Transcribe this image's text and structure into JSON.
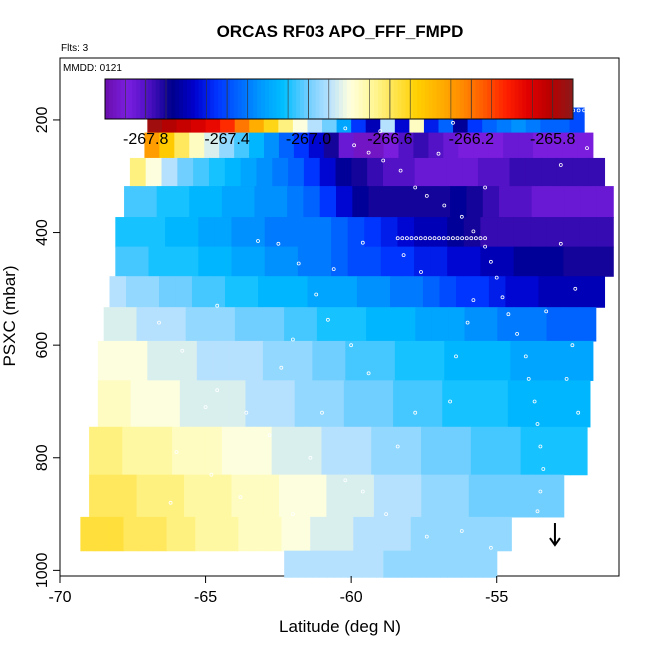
{
  "chart_data": {
    "type": "heatmap",
    "title": "ORCAS RF03 APO_FFF_FMPD",
    "flights_note": "Flts: 3",
    "date_note": "MMDD: 0121",
    "xlabel": "Latitude (deg N)",
    "ylabel": "PSXC (mbar)",
    "xlim": [
      -70,
      -50.8
    ],
    "ylim": [
      1010,
      90
    ],
    "x_ticks": [
      -70,
      -65,
      -60,
      -55
    ],
    "x_tick_labels": [
      "-70",
      "-65",
      "-60",
      "-55"
    ],
    "y_ticks": [
      200,
      400,
      600,
      800,
      1000
    ],
    "y_tick_labels": [
      "200",
      "400",
      "600",
      "800",
      "1000"
    ],
    "colorbar": {
      "range": [
        -268.0,
        -265.7
      ],
      "ticks": [
        -267.8,
        -267.4,
        -267.0,
        -266.6,
        -266.2,
        -265.8
      ],
      "tick_labels": [
        "-267.8",
        "-267.4",
        "-267.0",
        "-266.6",
        "-266.2",
        "-265.8"
      ],
      "colors": [
        "#6a0dad",
        "#7b1fe0",
        "#4b0fc0",
        "#00008b",
        "#0000cd",
        "#0033ff",
        "#0066ff",
        "#0099ff",
        "#00bfff",
        "#66ccff",
        "#b3e0ff",
        "#ffffdd",
        "#fff799",
        "#ffe44d",
        "#ffd000",
        "#ffb000",
        "#ff8c00",
        "#ff5a00",
        "#ff2000",
        "#e00000",
        "#b80000",
        "#8b1a1a"
      ]
    },
    "flight_arrow": {
      "latitude": -53.0,
      "pressure": 955,
      "direction": "down"
    },
    "bands": [
      {
        "pressure": 200,
        "lat_range": [
          -67.0,
          -52.0
        ],
        "values": [
          -265.75,
          -265.8,
          -265.85,
          -265.9,
          -265.95,
          -266.05,
          -266.2,
          -266.35,
          -266.5,
          -266.65,
          -266.8,
          -266.9,
          -267.0,
          -267.2,
          -267.45,
          -267.6,
          -266.9,
          -267.55,
          -266.75,
          -267.5,
          -267.35,
          -267.65,
          -267.45,
          -267.35,
          -267.3,
          -267.25,
          -267.3,
          -267.35,
          -267.35,
          -267.4
        ]
      },
      {
        "pressure": 245,
        "lat_range": [
          -67.1,
          -51.7
        ],
        "values": [
          -266.3,
          -266.45,
          -266.6,
          -266.75,
          -266.85,
          -266.95,
          -267.05,
          -267.15,
          -267.25,
          -267.35,
          -267.45,
          -267.55,
          -267.7,
          -267.85,
          -267.95,
          -267.95,
          -267.9,
          -267.8,
          -267.75,
          -267.8,
          -267.85,
          -267.9,
          -267.9,
          -267.9,
          -267.85,
          -267.85,
          -267.9,
          -267.9,
          -267.9,
          -267.9
        ]
      },
      {
        "pressure": 290,
        "lat_range": [
          -67.6,
          -51.3
        ],
        "values": [
          -266.65,
          -266.8,
          -266.9,
          -267.0,
          -267.05,
          -267.1,
          -267.15,
          -267.2,
          -267.25,
          -267.3,
          -267.35,
          -267.45,
          -267.55,
          -267.65,
          -267.7,
          -267.75,
          -267.8,
          -267.8,
          -267.85,
          -267.85,
          -267.85,
          -267.85,
          -267.8,
          -267.8,
          -267.75,
          -267.75,
          -267.75,
          -267.75,
          -267.75,
          -267.75
        ]
      },
      {
        "pressure": 345,
        "lat_range": [
          -67.8,
          -51.0
        ],
        "values": [
          -267.05,
          -267.05,
          -267.1,
          -267.1,
          -267.15,
          -267.15,
          -267.2,
          -267.2,
          -267.25,
          -267.25,
          -267.3,
          -267.35,
          -267.45,
          -267.55,
          -267.65,
          -267.7,
          -267.7,
          -267.7,
          -267.7,
          -267.7,
          -267.65,
          -267.7,
          -267.75,
          -267.8,
          -267.8,
          -267.85,
          -267.85,
          -267.85,
          -267.85,
          -267.85
        ]
      },
      {
        "pressure": 400,
        "lat_range": [
          -68.1,
          -51.0
        ],
        "values": [
          -267.1,
          -267.1,
          -267.1,
          -267.15,
          -267.15,
          -267.2,
          -267.2,
          -267.25,
          -267.25,
          -267.3,
          -267.3,
          -267.3,
          -267.3,
          -267.35,
          -267.4,
          -267.45,
          -267.5,
          -267.55,
          -267.6,
          -267.6,
          -267.65,
          -267.7,
          -267.75,
          -267.75,
          -267.75,
          -267.75,
          -267.75,
          -267.75,
          -267.75,
          -267.75
        ]
      },
      {
        "pressure": 450,
        "lat_range": [
          -68.1,
          -51.0
        ],
        "values": [
          -267.05,
          -267.05,
          -267.1,
          -267.1,
          -267.1,
          -267.15,
          -267.15,
          -267.2,
          -267.2,
          -267.25,
          -267.25,
          -267.3,
          -267.3,
          -267.35,
          -267.4,
          -267.4,
          -267.45,
          -267.45,
          -267.5,
          -267.5,
          -267.55,
          -267.55,
          -267.6,
          -267.6,
          -267.65,
          -267.65,
          -267.65,
          -267.7,
          -267.7,
          -267.7
        ]
      },
      {
        "pressure": 505,
        "lat_range": [
          -68.3,
          -51.3
        ],
        "values": [
          -266.9,
          -266.95,
          -266.95,
          -267.0,
          -267.0,
          -267.05,
          -267.05,
          -267.1,
          -267.1,
          -267.15,
          -267.15,
          -267.15,
          -267.2,
          -267.2,
          -267.2,
          -267.25,
          -267.25,
          -267.3,
          -267.3,
          -267.35,
          -267.4,
          -267.45,
          -267.45,
          -267.5,
          -267.55,
          -267.55,
          -267.6,
          -267.6,
          -267.6,
          -267.6
        ]
      },
      {
        "pressure": 560,
        "lat_range": [
          -68.5,
          -51.6
        ],
        "values": [
          -266.85,
          -266.85,
          -266.9,
          -266.9,
          -266.9,
          -266.95,
          -266.95,
          -266.95,
          -267.0,
          -267.0,
          -267.0,
          -267.05,
          -267.05,
          -267.1,
          -267.1,
          -267.1,
          -267.15,
          -267.15,
          -267.15,
          -267.2,
          -267.2,
          -267.2,
          -267.25,
          -267.25,
          -267.3,
          -267.3,
          -267.3,
          -267.35,
          -267.35,
          -267.35
        ]
      },
      {
        "pressure": 625,
        "lat_range": [
          -68.7,
          -51.7
        ],
        "values": [
          -266.8,
          -266.8,
          -266.8,
          -266.85,
          -266.85,
          -266.85,
          -266.9,
          -266.9,
          -266.9,
          -266.9,
          -266.95,
          -266.95,
          -266.95,
          -267.0,
          -267.0,
          -267.05,
          -267.05,
          -267.05,
          -267.1,
          -267.1,
          -267.1,
          -267.15,
          -267.15,
          -267.15,
          -267.15,
          -267.2,
          -267.2,
          -267.2,
          -267.2,
          -267.2
        ]
      },
      {
        "pressure": 700,
        "lat_range": [
          -68.7,
          -51.8
        ],
        "values": [
          -266.75,
          -266.75,
          -266.8,
          -266.8,
          -266.8,
          -266.85,
          -266.85,
          -266.85,
          -266.85,
          -266.9,
          -266.9,
          -266.9,
          -266.95,
          -266.95,
          -266.95,
          -267.0,
          -267.0,
          -267.0,
          -267.05,
          -267.05,
          -267.05,
          -267.1,
          -267.1,
          -267.1,
          -267.1,
          -267.15,
          -267.15,
          -267.15,
          -267.15,
          -267.15
        ]
      },
      {
        "pressure": 790,
        "lat_range": [
          -69.0,
          -51.9
        ],
        "values": [
          -266.65,
          -266.65,
          -266.7,
          -266.7,
          -266.7,
          -266.75,
          -266.75,
          -266.75,
          -266.8,
          -266.8,
          -266.8,
          -266.85,
          -266.85,
          -266.85,
          -266.9,
          -266.9,
          -266.9,
          -266.95,
          -266.95,
          -266.95,
          -267.0,
          -267.0,
          -267.0,
          -267.05,
          -267.05,
          -267.05,
          -267.1,
          -267.1,
          -267.1,
          -267.1
        ]
      },
      {
        "pressure": 870,
        "lat_range": [
          -69.0,
          -52.7
        ],
        "values": [
          -266.6,
          -266.6,
          -266.6,
          -266.65,
          -266.65,
          -266.65,
          -266.7,
          -266.7,
          -266.7,
          -266.75,
          -266.75,
          -266.75,
          -266.8,
          -266.8,
          -266.8,
          -266.85,
          -266.85,
          -266.85,
          -266.9,
          -266.9,
          -266.9,
          -266.95,
          -266.95,
          -266.95,
          -267.0,
          -267.0,
          -267.0,
          -267.0,
          -267.0,
          -267.0
        ]
      },
      {
        "pressure": 940,
        "lat_range": [
          -69.3,
          -54.5
        ],
        "values": [
          -266.55,
          -266.55,
          -266.55,
          -266.6,
          -266.6,
          -266.6,
          -266.65,
          -266.65,
          -266.7,
          -266.7,
          -266.7,
          -266.75,
          -266.75,
          -266.75,
          -266.8,
          -266.8,
          -266.85,
          -266.85,
          -266.85,
          -266.9,
          -266.9,
          -266.9,
          -266.9,
          -266.95,
          -266.95,
          -266.95,
          -266.95,
          -266.95,
          -266.95,
          -266.95
        ]
      },
      {
        "pressure": 990,
        "lat_range": [
          -62.3,
          -55.0
        ],
        "values": [
          -266.9,
          -266.9,
          -266.9,
          -266.9,
          -266.9,
          -266.9,
          -266.9,
          -266.9,
          -266.9,
          -266.9,
          -266.9,
          -266.9,
          -266.9,
          -266.9,
          -266.95,
          -266.95,
          -266.95,
          -266.95,
          -266.95,
          -266.95,
          -266.95,
          -266.95,
          -266.95,
          -266.95,
          -266.95,
          -266.95,
          -266.95,
          -266.95,
          -266.95,
          -266.95
        ]
      }
    ],
    "flight_track_segments": [
      {
        "pressure": 183,
        "lat_range": [
          -66.8,
          -52.0
        ],
        "n": 80
      },
      {
        "pressure": 410,
        "lat_range": [
          -58.4,
          -55.4
        ],
        "n": 20
      }
    ],
    "sample_points": [
      [
        -60.2,
        215
      ],
      [
        -59.9,
        245
      ],
      [
        -59.4,
        258
      ],
      [
        -58.9,
        272
      ],
      [
        -58.3,
        290
      ],
      [
        -57.8,
        320
      ],
      [
        -57.4,
        335
      ],
      [
        -56.8,
        352
      ],
      [
        -56.2,
        372
      ],
      [
        -55.8,
        398
      ],
      [
        -55.4,
        425
      ],
      [
        -55.2,
        452
      ],
      [
        -55.0,
        480
      ],
      [
        -54.8,
        515
      ],
      [
        -54.6,
        545
      ],
      [
        -54.3,
        580
      ],
      [
        -54.0,
        620
      ],
      [
        -53.9,
        660
      ],
      [
        -53.7,
        700
      ],
      [
        -53.6,
        740
      ],
      [
        -53.5,
        780
      ],
      [
        -53.4,
        820
      ],
      [
        -53.5,
        860
      ],
      [
        -53.6,
        895
      ],
      [
        -63.2,
        415
      ],
      [
        -62.5,
        420
      ],
      [
        -61.8,
        455
      ],
      [
        -60.6,
        465
      ],
      [
        -59.6,
        418
      ],
      [
        -60.0,
        600
      ],
      [
        -59.4,
        650
      ],
      [
        -62.4,
        640
      ],
      [
        -63.6,
        720
      ],
      [
        -65.0,
        710
      ],
      [
        -66.0,
        790
      ],
      [
        -64.8,
        830
      ],
      [
        -66.2,
        880
      ],
      [
        -63.8,
        870
      ],
      [
        -62.0,
        900
      ],
      [
        -61.4,
        800
      ],
      [
        -59.6,
        860
      ],
      [
        -58.4,
        780
      ],
      [
        -57.8,
        720
      ],
      [
        -56.6,
        700
      ],
      [
        -56.4,
        620
      ],
      [
        -56.0,
        560
      ],
      [
        -55.8,
        520
      ],
      [
        -57.6,
        470
      ],
      [
        -58.2,
        440
      ],
      [
        -52.8,
        420
      ],
      [
        -52.3,
        500
      ],
      [
        -53.3,
        540
      ],
      [
        -52.4,
        600
      ],
      [
        -52.2,
        720
      ],
      [
        -52.6,
        660
      ],
      [
        -52.8,
        280
      ],
      [
        -51.9,
        250
      ],
      [
        -55.4,
        320
      ],
      [
        -57.0,
        260
      ],
      [
        -59.0,
        220
      ],
      [
        -56.5,
        205
      ],
      [
        -61.2,
        510
      ],
      [
        -64.6,
        530
      ],
      [
        -66.6,
        560
      ],
      [
        -65.8,
        610
      ],
      [
        -64.6,
        680
      ],
      [
        -62.8,
        760
      ],
      [
        -61.0,
        720
      ],
      [
        -60.2,
        840
      ],
      [
        -58.8,
        900
      ],
      [
        -57.4,
        940
      ],
      [
        -56.2,
        930
      ],
      [
        -55.2,
        960
      ],
      [
        -54.5,
        990
      ],
      [
        -60.8,
        555
      ],
      [
        -62.0,
        590
      ]
    ]
  }
}
